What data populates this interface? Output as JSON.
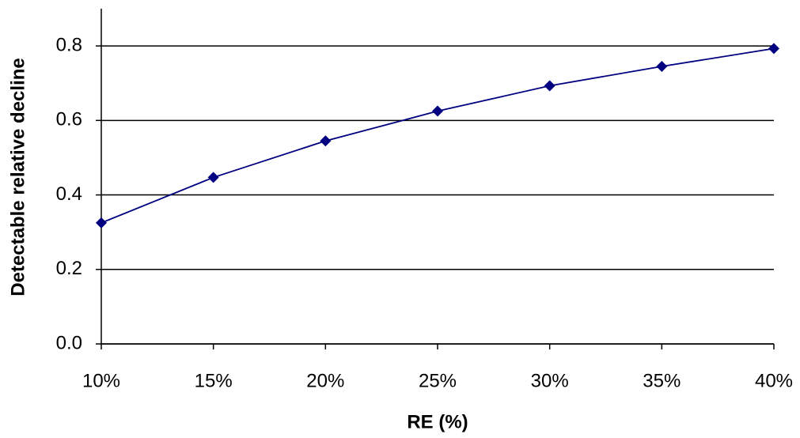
{
  "chart_data": {
    "type": "line",
    "x_label": "RE (%)",
    "y_label": "Detectable relative decline",
    "x": [
      10,
      15,
      20,
      25,
      30,
      35,
      40
    ],
    "series": [
      {
        "name": "Detectable relative decline",
        "color": "#000080",
        "values": [
          0.325,
          0.447,
          0.545,
          0.625,
          0.693,
          0.745,
          0.793
        ]
      }
    ],
    "xlim": [
      10,
      40
    ],
    "xticks": [
      {
        "value": 10,
        "label": "10%"
      },
      {
        "value": 15,
        "label": "15%"
      },
      {
        "value": 20,
        "label": "20%"
      },
      {
        "value": 25,
        "label": "25%"
      },
      {
        "value": 30,
        "label": "30%"
      },
      {
        "value": 35,
        "label": "35%"
      },
      {
        "value": 40,
        "label": "40%"
      }
    ],
    "ylim": [
      0,
      0.9
    ],
    "yticks": [
      {
        "value": 0,
        "label": "0.0"
      },
      0.2,
      0.4,
      0.6,
      0.8
    ],
    "grid": true
  }
}
